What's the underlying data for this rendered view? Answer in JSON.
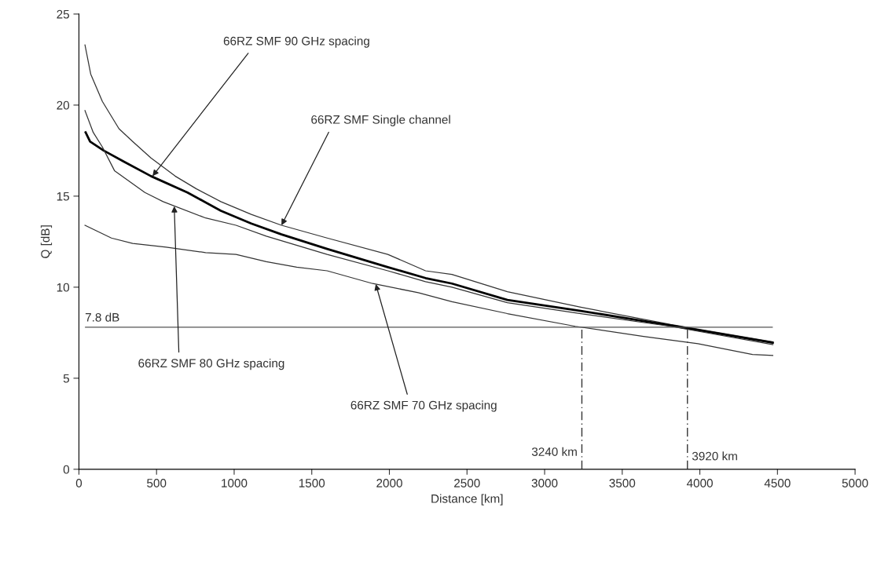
{
  "chart_data": {
    "type": "line",
    "xlabel": "Distance [km]",
    "ylabel": "Q [dB]",
    "xlim": [
      0,
      5000
    ],
    "ylim": [
      0,
      25
    ],
    "xticks": [
      0,
      500,
      1000,
      1500,
      2000,
      2500,
      3000,
      3500,
      4000,
      4500,
      5000
    ],
    "yticks": [
      0,
      5,
      10,
      15,
      20,
      25
    ],
    "grid": false,
    "legend": false,
    "marker": "none",
    "line_style": "solid",
    "series": [
      {
        "color": "#333333",
        "x": [
          39,
          76,
          151,
          258,
          346,
          464,
          620,
          757,
          914,
          1110,
          1305,
          1599,
          1990,
          2233,
          2403,
          2760,
          3233,
          3812,
          4470
        ],
        "values": [
          23.3,
          21.7,
          20.2,
          18.7,
          18.0,
          17.1,
          16.1,
          15.4,
          14.7,
          14.0,
          13.4,
          12.7,
          11.8,
          10.9,
          10.7,
          9.75,
          8.9,
          7.95,
          7.0
        ]
      },
      {
        "color": "#000000",
        "x": [
          43,
          72,
          160,
          288,
          464,
          699,
          914,
          1110,
          1305,
          1599,
          1990,
          2233,
          2403,
          2760,
          3233,
          3812,
          4470
        ],
        "values": [
          18.5,
          18.0,
          17.5,
          16.9,
          16.1,
          15.2,
          14.2,
          13.5,
          12.9,
          12.1,
          11.1,
          10.5,
          10.2,
          9.3,
          8.7,
          7.9,
          6.95
        ]
      },
      {
        "color": "#333333",
        "x": [
          39,
          92,
          151,
          229,
          425,
          542,
          816,
          1012,
          1207,
          1599,
          1990,
          2233,
          2403,
          2760,
          3233,
          3812,
          4470
        ],
        "values": [
          19.7,
          18.5,
          17.7,
          16.4,
          15.2,
          14.7,
          13.8,
          13.4,
          12.8,
          11.8,
          10.9,
          10.3,
          10.0,
          9.15,
          8.55,
          7.85,
          6.85
        ]
      },
      {
        "color": "#333333",
        "x": [
          39,
          209,
          346,
          562,
          816,
          1012,
          1207,
          1403,
          1599,
          1892,
          2186,
          2403,
          2760,
          3198,
          3637,
          3988,
          4339,
          4470
        ],
        "values": [
          13.4,
          12.7,
          12.4,
          12.2,
          11.9,
          11.8,
          11.4,
          11.1,
          10.9,
          10.2,
          9.7,
          9.2,
          8.55,
          7.85,
          7.3,
          6.9,
          6.3,
          6.25
        ]
      }
    ],
    "ref_lines": [
      {
        "axis": "y",
        "value": 7.8,
        "label": "7.8 dB",
        "color": "#555555",
        "line_style": "solid"
      },
      {
        "axis": "x",
        "value": 3240,
        "label": "3240 km",
        "color": "#333333",
        "line_style": "dashed"
      },
      {
        "axis": "x",
        "value": 3920,
        "label": "3920 km",
        "color": "#333333",
        "line_style": "dashed"
      }
    ],
    "annotations": [
      {
        "text": "66RZ SMF 90 GHz spacing",
        "x": 474,
        "y": 16.1
      },
      {
        "text": "66RZ SMF Single channel",
        "x": 1305,
        "y": 13.4
      },
      {
        "text": "66RZ SMF 80 GHz spacing",
        "x": 614,
        "y": 14.45
      },
      {
        "text": "66RZ SMF 70 GHz spacing",
        "x": 1912,
        "y": 10.17
      }
    ]
  }
}
